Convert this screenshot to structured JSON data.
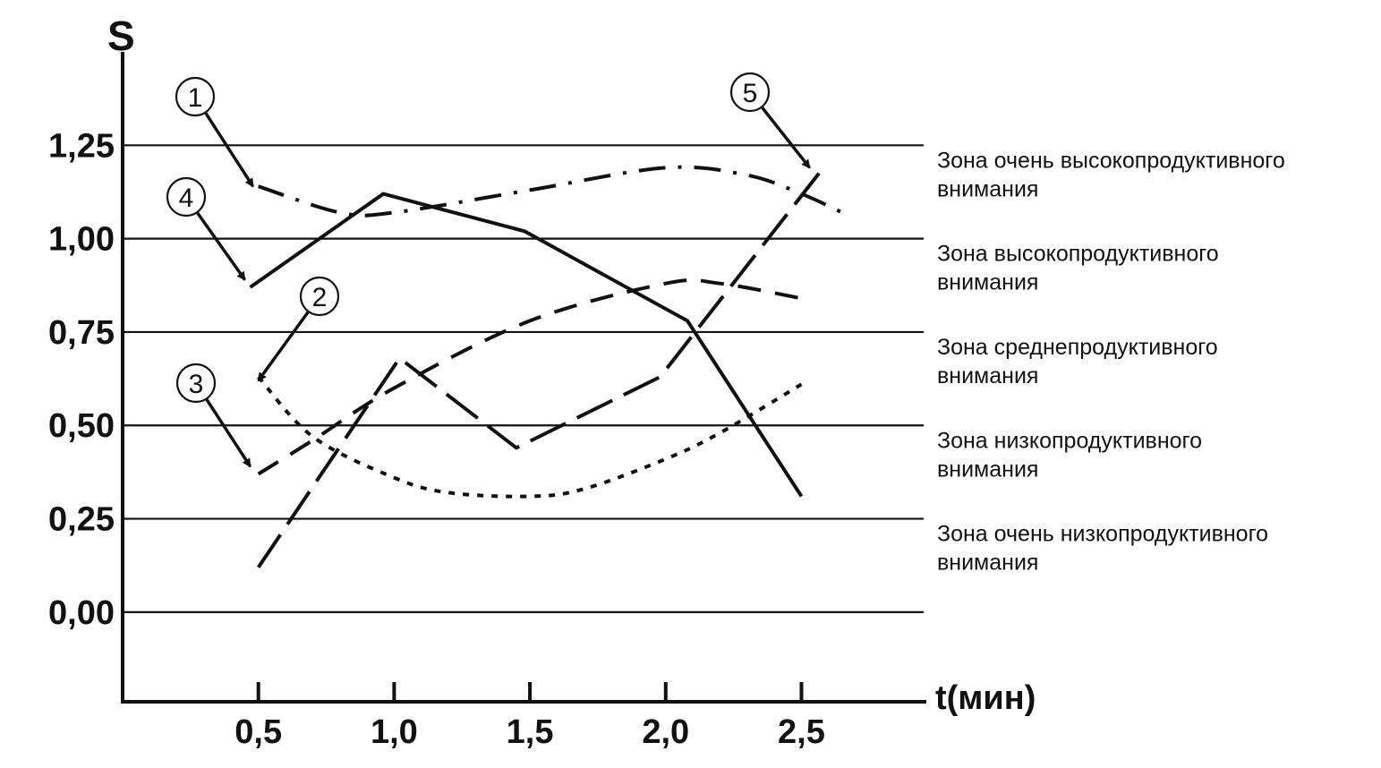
{
  "chart_data": {
    "type": "line",
    "title": "",
    "ylabel": "S",
    "xlabel": "t(мин)",
    "xlim": [
      0.0,
      2.95
    ],
    "ylim": [
      -0.24,
      1.5
    ],
    "x_ticks": [
      0.5,
      1.0,
      1.5,
      2.0,
      2.5
    ],
    "x_tick_labels": [
      "0,5",
      "1,0",
      "1,5",
      "2,0",
      "2,5"
    ],
    "y_ticks": [
      0.0,
      0.25,
      0.5,
      0.75,
      1.0,
      1.25
    ],
    "y_tick_labels": [
      "0,00",
      "0,25",
      "0,50",
      "0,75",
      "1,00",
      "1,25"
    ],
    "grid": true,
    "zones": [
      {
        "line1": "Зона очень высокопродуктивного",
        "line2": "внимания",
        "y": 1.19
      },
      {
        "line1": "Зона  высокопродуктивного",
        "line2": "внимания",
        "y": 0.94
      },
      {
        "line1": "Зона среднепродуктивного",
        "line2": "внимания",
        "y": 0.69
      },
      {
        "line1": "Зона низкопродуктивного",
        "line2": "внимания",
        "y": 0.44
      },
      {
        "line1": "Зона очень низкопродуктивного",
        "line2": "внимания",
        "y": 0.19
      }
    ],
    "series": [
      {
        "name": "1",
        "style": "dashdot",
        "x": [
          0.5,
          0.8,
          1.0,
          1.5,
          2.0,
          2.3,
          2.5,
          2.65
        ],
        "y": [
          1.14,
          1.07,
          1.07,
          1.13,
          1.19,
          1.17,
          1.12,
          1.07
        ]
      },
      {
        "name": "2",
        "style": "dotted",
        "x": [
          0.5,
          0.7,
          1.0,
          1.2,
          1.5,
          1.7,
          2.0,
          2.2,
          2.5
        ],
        "y": [
          0.63,
          0.47,
          0.36,
          0.32,
          0.31,
          0.33,
          0.41,
          0.48,
          0.61
        ]
      },
      {
        "name": "3",
        "style": "dashed",
        "x": [
          0.5,
          0.7,
          1.0,
          1.5,
          2.0,
          2.2,
          2.5
        ],
        "y": [
          0.37,
          0.46,
          0.6,
          0.78,
          0.88,
          0.88,
          0.84
        ]
      },
      {
        "name": "4",
        "style": "solid",
        "x": [
          0.47,
          0.96,
          1.48,
          2.08,
          2.5
        ],
        "y": [
          0.87,
          1.12,
          1.02,
          0.78,
          0.31
        ]
      },
      {
        "name": "5",
        "style": "longdash",
        "x": [
          0.5,
          1.02,
          1.45,
          1.98,
          2.57
        ],
        "y": [
          0.12,
          0.68,
          0.44,
          0.63,
          1.18
        ]
      }
    ],
    "annotations": [
      {
        "label": "1",
        "points_to": [
          0.48,
          1.14
        ]
      },
      {
        "label": "2",
        "points_to": [
          0.5,
          0.62
        ]
      },
      {
        "label": "3",
        "points_to": [
          0.47,
          0.39
        ]
      },
      {
        "label": "4",
        "points_to": [
          0.45,
          0.89
        ]
      },
      {
        "label": "5",
        "points_to": [
          2.53,
          1.19
        ]
      }
    ]
  }
}
